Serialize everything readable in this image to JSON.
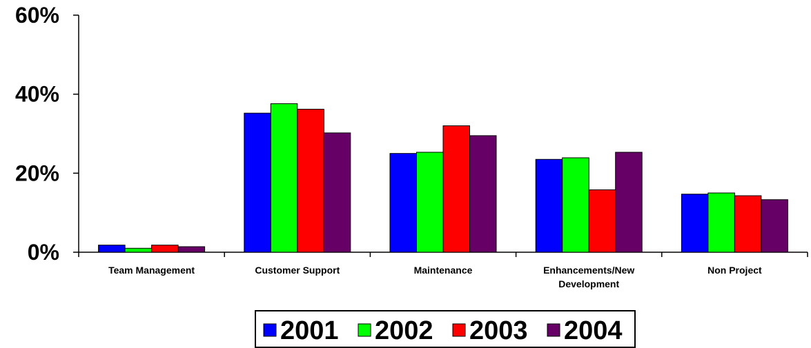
{
  "chart_data": {
    "type": "bar",
    "categories": [
      [
        "Team Management"
      ],
      [
        "Customer Support"
      ],
      [
        "Maintenance"
      ],
      [
        "Enhancements/New",
        "Development"
      ],
      [
        "Non Project"
      ]
    ],
    "series": [
      {
        "name": "2001",
        "color": "#0000ff",
        "values": [
          1.8,
          35.2,
          25.0,
          23.5,
          14.7
        ]
      },
      {
        "name": "2002",
        "color": "#00ff00",
        "values": [
          1.0,
          37.6,
          25.3,
          23.9,
          15.0
        ]
      },
      {
        "name": "2003",
        "color": "#ff0000",
        "values": [
          1.8,
          36.2,
          32.0,
          15.8,
          14.3
        ]
      },
      {
        "name": "2004",
        "color": "#660066",
        "values": [
          1.4,
          30.2,
          29.5,
          25.3,
          13.3
        ]
      }
    ],
    "y_ticks": [
      "0%",
      "20%",
      "40%",
      "60%"
    ],
    "y_tick_values": [
      0,
      20,
      40,
      60
    ],
    "ylim": [
      0,
      60
    ],
    "legend_position": "bottom",
    "grid": false
  }
}
